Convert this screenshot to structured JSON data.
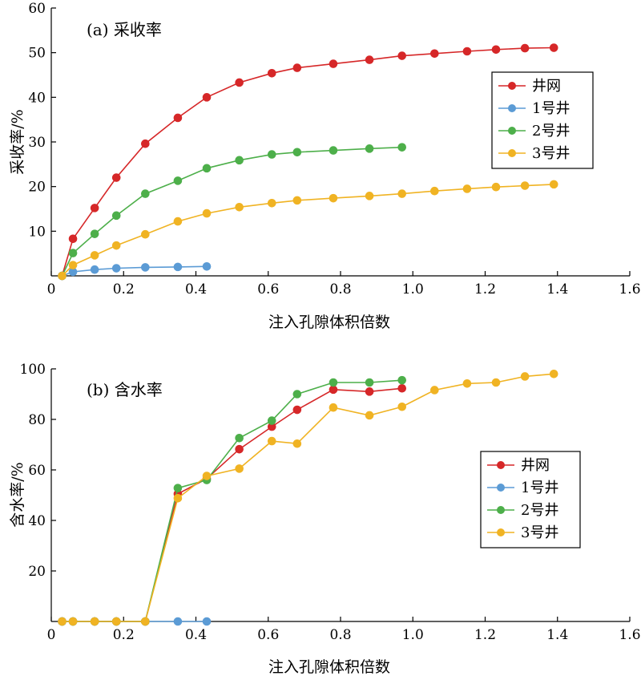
{
  "chart_data": [
    {
      "type": "line",
      "title": "(a) 采收率",
      "xlabel": "注入孔隙体积倍数",
      "ylabel": "采收率/%",
      "xlim": [
        0,
        1.6
      ],
      "ylim": [
        0,
        60
      ],
      "xticks": [
        "0",
        "0.2",
        "0.4",
        "0.6",
        "0.8",
        "1.0",
        "1.2",
        "1.4",
        "1.6"
      ],
      "yticks": [
        "10",
        "20",
        "30",
        "40",
        "50",
        "60"
      ],
      "grid": false,
      "legend": "top-right",
      "series": [
        {
          "name": "井网",
          "color": "#d62728",
          "x": [
            0.03,
            0.06,
            0.12,
            0.18,
            0.26,
            0.35,
            0.43,
            0.52,
            0.61,
            0.68,
            0.78,
            0.88,
            0.97,
            1.06,
            1.15,
            1.23,
            1.31,
            1.39
          ],
          "y": [
            0,
            8.3,
            15.2,
            22,
            29.6,
            35.4,
            40,
            43.3,
            45.4,
            46.6,
            47.5,
            48.4,
            49.3,
            49.8,
            50.3,
            50.7,
            51.0,
            51.1
          ]
        },
        {
          "name": "1号井",
          "color": "#5b9bd5",
          "x": [
            0.03,
            0.06,
            0.12,
            0.18,
            0.26,
            0.35,
            0.43
          ],
          "y": [
            0,
            0.9,
            1.4,
            1.7,
            1.9,
            2.0,
            2.1
          ]
        },
        {
          "name": "2号井",
          "color": "#4daf4a",
          "x": [
            0.03,
            0.06,
            0.12,
            0.18,
            0.26,
            0.35,
            0.43,
            0.52,
            0.61,
            0.68,
            0.78,
            0.88,
            0.97
          ],
          "y": [
            0,
            5.1,
            9.4,
            13.5,
            18.4,
            21.3,
            24.1,
            25.9,
            27.2,
            27.7,
            28.1,
            28.5,
            28.8
          ]
        },
        {
          "name": "3号井",
          "color": "#f0b323",
          "x": [
            0.03,
            0.06,
            0.12,
            0.18,
            0.26,
            0.35,
            0.43,
            0.52,
            0.61,
            0.68,
            0.78,
            0.88,
            0.97,
            1.06,
            1.15,
            1.23,
            1.31,
            1.39
          ],
          "y": [
            0,
            2.4,
            4.6,
            6.8,
            9.3,
            12.2,
            14.0,
            15.4,
            16.3,
            16.9,
            17.4,
            17.9,
            18.4,
            19.0,
            19.5,
            19.9,
            20.2,
            20.5
          ]
        }
      ]
    },
    {
      "type": "line",
      "title": "(b) 含水率",
      "xlabel": "注入孔隙体积倍数",
      "ylabel": "含水率/%",
      "xlim": [
        0,
        1.6
      ],
      "ylim": [
        0,
        100
      ],
      "xticks": [
        "0",
        "0.2",
        "0.4",
        "0.6",
        "0.8",
        "1.0",
        "1.2",
        "1.4",
        "1.6"
      ],
      "yticks": [
        "20",
        "40",
        "60",
        "80",
        "100"
      ],
      "grid": false,
      "legend": "right",
      "series": [
        {
          "name": "井网",
          "color": "#d62728",
          "x": [
            0.03,
            0.06,
            0.12,
            0.18,
            0.26,
            0.35,
            0.43,
            0.52,
            0.61,
            0.68,
            0.78,
            0.88,
            0.97
          ],
          "y": [
            0,
            0,
            0,
            0,
            0,
            50.5,
            56.5,
            68.2,
            77.1,
            83.8,
            91.8,
            91.0,
            92.3
          ]
        },
        {
          "name": "1号井",
          "color": "#5b9bd5",
          "x": [
            0.03,
            0.06,
            0.12,
            0.18,
            0.26,
            0.35,
            0.43
          ],
          "y": [
            0,
            0,
            0,
            0,
            0,
            0,
            0
          ]
        },
        {
          "name": "2号井",
          "color": "#4daf4a",
          "x": [
            0.03,
            0.06,
            0.12,
            0.18,
            0.26,
            0.35,
            0.43,
            0.52,
            0.61,
            0.68,
            0.78,
            0.88,
            0.97
          ],
          "y": [
            0,
            0,
            0,
            0,
            0,
            52.8,
            56.0,
            72.6,
            79.5,
            90.0,
            94.6,
            94.6,
            95.5
          ]
        },
        {
          "name": "3号井",
          "color": "#f0b323",
          "x": [
            0.03,
            0.06,
            0.12,
            0.18,
            0.26,
            0.35,
            0.43,
            0.52,
            0.61,
            0.68,
            0.78,
            0.88,
            0.97,
            1.06,
            1.15,
            1.23,
            1.31,
            1.39
          ],
          "y": [
            0,
            0,
            0,
            0,
            0,
            48.8,
            57.6,
            60.5,
            71.4,
            70.4,
            84.7,
            81.6,
            85.0,
            91.6,
            94.2,
            94.6,
            97.0,
            98.0
          ]
        }
      ]
    }
  ]
}
